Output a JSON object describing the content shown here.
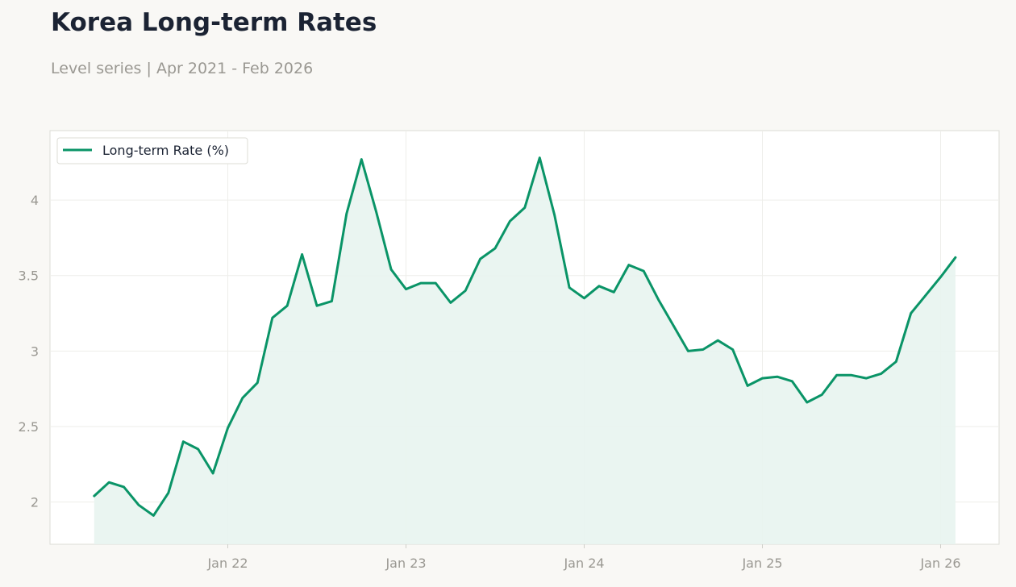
{
  "header": {
    "title": "Korea Long-term Rates",
    "subtitle": "Level series | Apr 2021 - Feb 2026"
  },
  "colors": {
    "series": "#0a9467",
    "fill": "#e8f4ef",
    "grid": "#eeeeea",
    "axis_text": "#9a9892",
    "background": "#f9f8f5",
    "plot_background": "#ffffff"
  },
  "chart_data": {
    "type": "area",
    "title": "Korea Long-term Rates",
    "subtitle": "Level series | Apr 2021 - Feb 2026",
    "xlabel": "",
    "ylabel": "",
    "ylim": [
      1.72,
      4.46
    ],
    "grid": true,
    "legend": "top-left",
    "x_ticks": [
      "Jan 22",
      "Jan 23",
      "Jan 24",
      "Jan 25",
      "Jan 26"
    ],
    "y_ticks": [
      2,
      2.5,
      3,
      3.5,
      4
    ],
    "series": [
      {
        "name": "Long-term Rate (%)",
        "x": [
          "2021-04",
          "2021-05",
          "2021-06",
          "2021-07",
          "2021-08",
          "2021-09",
          "2021-10",
          "2021-11",
          "2021-12",
          "2022-01",
          "2022-02",
          "2022-03",
          "2022-04",
          "2022-05",
          "2022-06",
          "2022-07",
          "2022-08",
          "2022-09",
          "2022-10",
          "2022-11",
          "2022-12",
          "2023-01",
          "2023-02",
          "2023-03",
          "2023-04",
          "2023-05",
          "2023-06",
          "2023-07",
          "2023-08",
          "2023-09",
          "2023-10",
          "2023-11",
          "2023-12",
          "2024-01",
          "2024-02",
          "2024-03",
          "2024-04",
          "2024-05",
          "2024-06",
          "2024-07",
          "2024-08",
          "2024-09",
          "2024-10",
          "2024-11",
          "2024-12",
          "2025-01",
          "2025-02",
          "2025-03",
          "2025-04",
          "2025-05",
          "2025-06",
          "2025-07",
          "2025-08",
          "2025-09",
          "2025-10",
          "2025-11",
          "2025-12",
          "2026-01",
          "2026-02"
        ],
        "values": [
          2.04,
          2.13,
          2.1,
          1.98,
          1.91,
          2.06,
          2.4,
          2.35,
          2.19,
          2.49,
          2.69,
          2.79,
          3.22,
          3.3,
          3.64,
          3.3,
          3.33,
          3.91,
          4.27,
          3.92,
          3.54,
          3.41,
          3.45,
          3.45,
          3.32,
          3.4,
          3.61,
          3.68,
          3.86,
          3.95,
          4.28,
          3.9,
          3.42,
          3.35,
          3.43,
          3.39,
          3.57,
          3.53,
          3.34,
          3.17,
          3.0,
          3.01,
          3.07,
          3.01,
          2.77,
          2.82,
          2.83,
          2.8,
          2.66,
          2.71,
          2.84,
          2.84,
          2.82,
          2.85,
          2.93,
          3.25,
          3.37,
          3.49,
          3.62
        ]
      }
    ]
  }
}
